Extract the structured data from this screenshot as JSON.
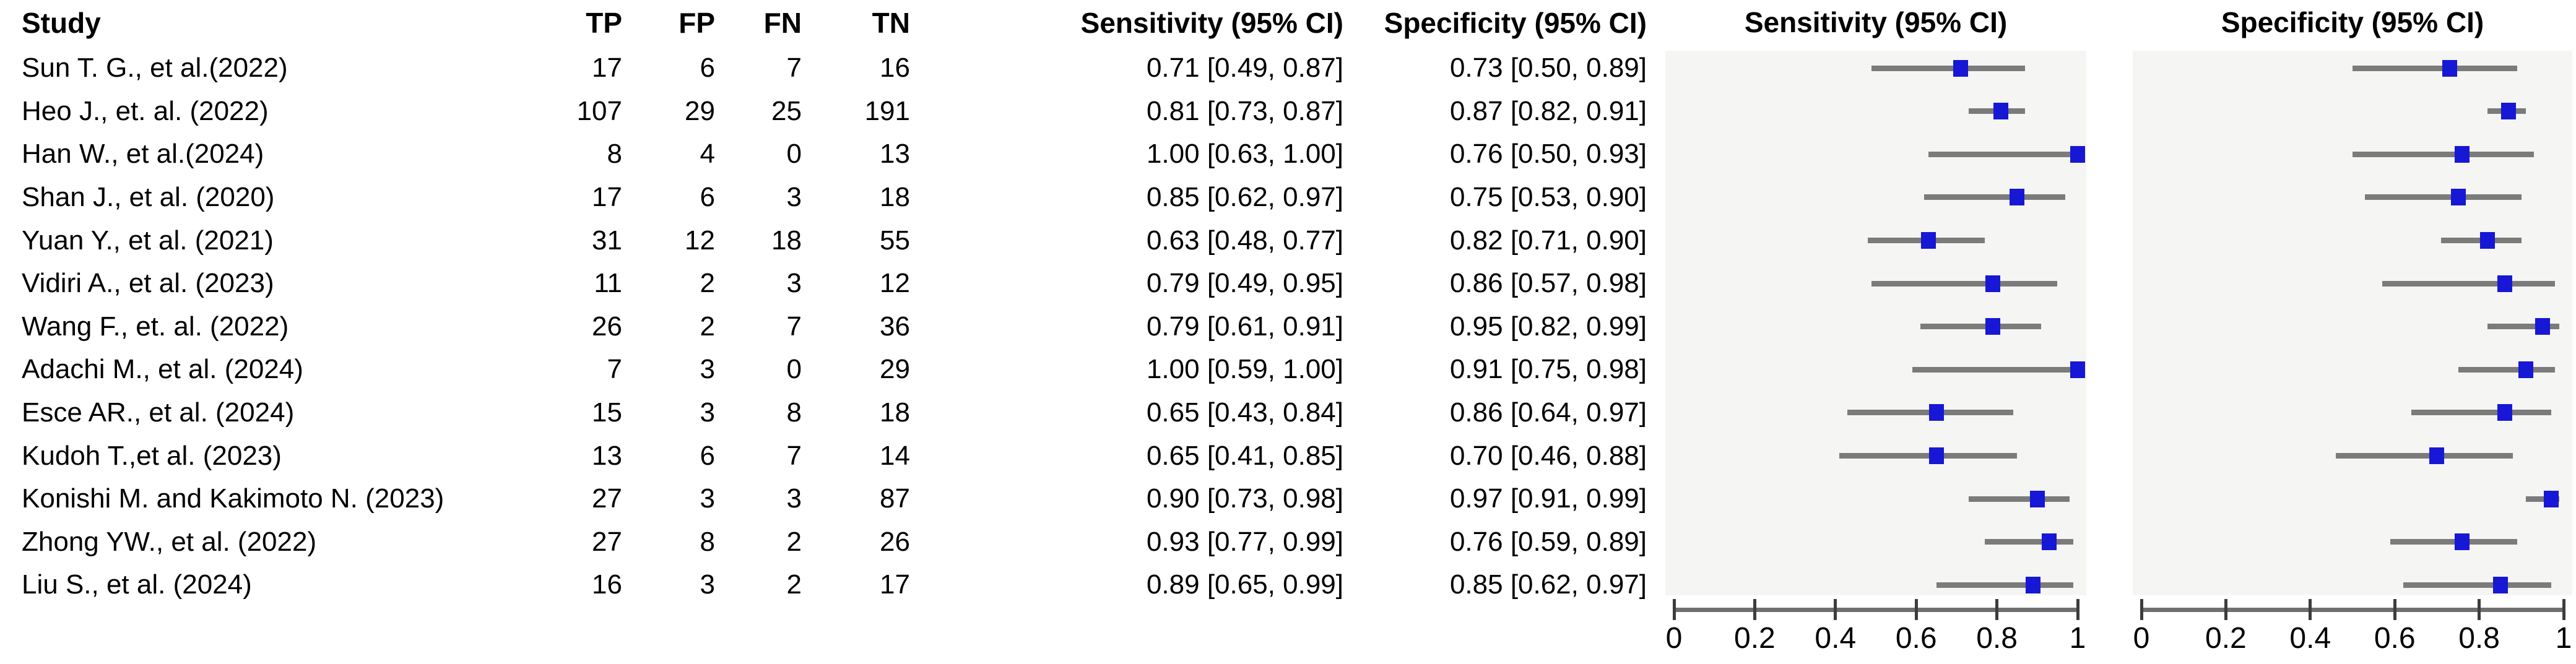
{
  "table": {
    "headers": {
      "study": "Study",
      "tp": "TP",
      "fp": "FP",
      "fn": "FN",
      "tn": "TN",
      "sens": "Sensitivity (95% CI)",
      "spec": "Specificity (95% CI)"
    },
    "rows": [
      {
        "study": "Sun T. G.,  et al.(2022)",
        "tp": 17,
        "fp": 6,
        "fn": 7,
        "tn": 16,
        "sens_ci": "0.71 [0.49, 0.87]",
        "spec_ci": "0.73 [0.50, 0.89]"
      },
      {
        "study": "Heo J., et. al. (2022)",
        "tp": 107,
        "fp": 29,
        "fn": 25,
        "tn": 191,
        "sens_ci": "0.81 [0.73, 0.87]",
        "spec_ci": "0.87 [0.82, 0.91]"
      },
      {
        "study": "Han W., et al.(2024)",
        "tp": 8,
        "fp": 4,
        "fn": 0,
        "tn": 13,
        "sens_ci": "1.00 [0.63, 1.00]",
        "spec_ci": "0.76 [0.50, 0.93]"
      },
      {
        "study": "Shan J., et  al. (2020)",
        "tp": 17,
        "fp": 6,
        "fn": 3,
        "tn": 18,
        "sens_ci": "0.85 [0.62, 0.97]",
        "spec_ci": "0.75 [0.53, 0.90]"
      },
      {
        "study": "Yuan Y., et al. (2021)",
        "tp": 31,
        "fp": 12,
        "fn": 18,
        "tn": 55,
        "sens_ci": "0.63 [0.48, 0.77]",
        "spec_ci": "0.82 [0.71, 0.90]"
      },
      {
        "study": "Vidiri A., et al. (2023)",
        "tp": 11,
        "fp": 2,
        "fn": 3,
        "tn": 12,
        "sens_ci": "0.79 [0.49, 0.95]",
        "spec_ci": "0.86 [0.57, 0.98]"
      },
      {
        "study": "Wang F., et. al. (2022)",
        "tp": 26,
        "fp": 2,
        "fn": 7,
        "tn": 36,
        "sens_ci": "0.79 [0.61, 0.91]",
        "spec_ci": "0.95 [0.82, 0.99]"
      },
      {
        "study": "Adachi M., et al. (2024)",
        "tp": 7,
        "fp": 3,
        "fn": 0,
        "tn": 29,
        "sens_ci": "1.00 [0.59, 1.00]",
        "spec_ci": "0.91 [0.75, 0.98]"
      },
      {
        "study": "Esce AR., et al. (2024)",
        "tp": 15,
        "fp": 3,
        "fn": 8,
        "tn": 18,
        "sens_ci": "0.65 [0.43, 0.84]",
        "spec_ci": "0.86 [0.64, 0.97]"
      },
      {
        "study": "Kudoh T.,et al. (2023)",
        "tp": 13,
        "fp": 6,
        "fn": 7,
        "tn": 14,
        "sens_ci": "0.65 [0.41, 0.85]",
        "spec_ci": "0.70 [0.46, 0.88]"
      },
      {
        "study": "Konishi M. and Kakimoto N. (2023)",
        "tp": 27,
        "fp": 3,
        "fn": 3,
        "tn": 87,
        "sens_ci": "0.90 [0.73, 0.98]",
        "spec_ci": "0.97 [0.91, 0.99]"
      },
      {
        "study": "Zhong YW., et al. (2022)",
        "tp": 27,
        "fp": 8,
        "fn": 2,
        "tn": 26,
        "sens_ci": "0.93 [0.77, 0.99]",
        "spec_ci": "0.76 [0.59, 0.89]"
      },
      {
        "study": "Liu S., et al. (2024)",
        "tp": 16,
        "fp": 3,
        "fn": 2,
        "tn": 17,
        "sens_ci": "0.89 [0.65, 0.99]",
        "spec_ci": "0.85 [0.62, 0.97]"
      }
    ]
  },
  "plots": {
    "sensitivity_title": "Sensitivity (95% CI)",
    "specificity_title": "Specificity (95% CI)",
    "axis_tick_labels": [
      "0",
      "0.2",
      "0.4",
      "0.6",
      "0.8",
      "1"
    ]
  },
  "colors": {
    "marker_blue": "#1717d6",
    "ci_line_gray": "#7b7b7b",
    "panel_background": "#f5f5f3",
    "text": "#000000"
  },
  "chart_data": [
    {
      "type": "scatter",
      "variant": "forest-plot",
      "title": "Sensitivity (95% CI)",
      "xlabel": "",
      "ylabel": "",
      "xlim": [
        0,
        1
      ],
      "x_ticks": [
        0,
        0.2,
        0.4,
        0.6,
        0.8,
        1
      ],
      "grid": false,
      "legend": "none",
      "categories": [
        "Sun T. G.,  et al.(2022)",
        "Heo J., et. al. (2022)",
        "Han W., et al.(2024)",
        "Shan J., et  al. (2020)",
        "Yuan Y., et al. (2021)",
        "Vidiri A., et al. (2023)",
        "Wang F., et. al. (2022)",
        "Adachi M., et al. (2024)",
        "Esce AR., et al. (2024)",
        "Kudoh T.,et al. (2023)",
        "Konishi M. and Kakimoto N. (2023)",
        "Zhong YW., et al. (2022)",
        "Liu S., et al. (2024)"
      ],
      "estimates": [
        0.71,
        0.81,
        1.0,
        0.85,
        0.63,
        0.79,
        0.79,
        1.0,
        0.65,
        0.65,
        0.9,
        0.93,
        0.89
      ],
      "ci_lower": [
        0.49,
        0.73,
        0.63,
        0.62,
        0.48,
        0.49,
        0.61,
        0.59,
        0.43,
        0.41,
        0.73,
        0.77,
        0.65
      ],
      "ci_upper": [
        0.87,
        0.87,
        1.0,
        0.97,
        0.77,
        0.95,
        0.91,
        1.0,
        0.84,
        0.85,
        0.98,
        0.99,
        0.99
      ]
    },
    {
      "type": "scatter",
      "variant": "forest-plot",
      "title": "Specificity (95% CI)",
      "xlabel": "",
      "ylabel": "",
      "xlim": [
        0,
        1
      ],
      "x_ticks": [
        0,
        0.2,
        0.4,
        0.6,
        0.8,
        1
      ],
      "grid": false,
      "legend": "none",
      "categories": [
        "Sun T. G.,  et al.(2022)",
        "Heo J., et. al. (2022)",
        "Han W., et al.(2024)",
        "Shan J., et  al. (2020)",
        "Yuan Y., et al. (2021)",
        "Vidiri A., et al. (2023)",
        "Wang F., et. al. (2022)",
        "Adachi M., et al. (2024)",
        "Esce AR., et al. (2024)",
        "Kudoh T.,et al. (2023)",
        "Konishi M. and Kakimoto N. (2023)",
        "Zhong YW., et al. (2022)",
        "Liu S., et al. (2024)"
      ],
      "estimates": [
        0.73,
        0.87,
        0.76,
        0.75,
        0.82,
        0.86,
        0.95,
        0.91,
        0.86,
        0.7,
        0.97,
        0.76,
        0.85
      ],
      "ci_lower": [
        0.5,
        0.82,
        0.5,
        0.53,
        0.71,
        0.57,
        0.82,
        0.75,
        0.64,
        0.46,
        0.91,
        0.59,
        0.62
      ],
      "ci_upper": [
        0.89,
        0.91,
        0.93,
        0.9,
        0.9,
        0.98,
        0.99,
        0.98,
        0.97,
        0.88,
        0.99,
        0.89,
        0.97
      ]
    }
  ]
}
